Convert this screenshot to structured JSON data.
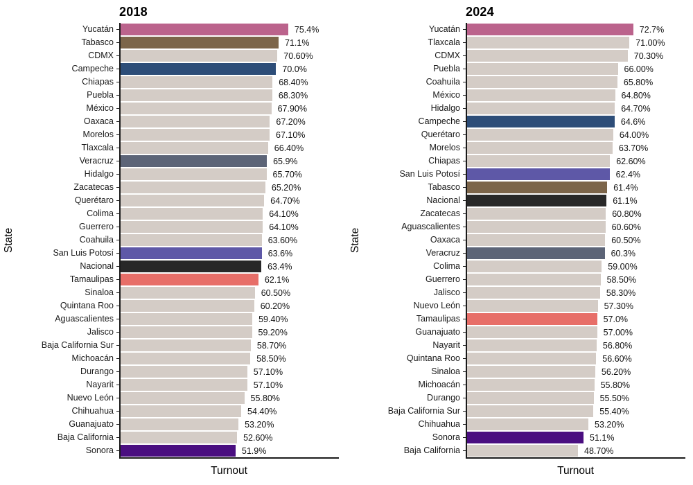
{
  "colors": {
    "bar_default": "#d4ccc6",
    "axis": "#1a1a1a",
    "highlight_pink": "#bb638c",
    "highlight_brown": "#7c654a",
    "highlight_blue": "#2d4d78",
    "highlight_slate": "#5c6477",
    "highlight_purple": "#5e58a7",
    "highlight_black": "#282828",
    "highlight_salmon": "#e76e68",
    "highlight_deep_purple": "#4a0e80"
  },
  "chart_data": [
    {
      "type": "bar",
      "orientation": "horizontal",
      "title": "2018",
      "xlabel": "Turnout",
      "ylabel": "State",
      "xlim": [
        0,
        97.7
      ],
      "grid": false,
      "bars": [
        {
          "name": "Yucatán",
          "value": 75.4,
          "label": "75.4%",
          "color": "#bb638c"
        },
        {
          "name": "Tabasco",
          "value": 71.1,
          "label": "71.1%",
          "color": "#7c654a"
        },
        {
          "name": "CDMX",
          "value": 70.6,
          "label": "70.60%"
        },
        {
          "name": "Campeche",
          "value": 70.0,
          "label": "70.0%",
          "color": "#2d4d78"
        },
        {
          "name": "Chiapas",
          "value": 68.4,
          "label": "68.40%"
        },
        {
          "name": "Puebla",
          "value": 68.3,
          "label": "68.30%"
        },
        {
          "name": "México",
          "value": 67.9,
          "label": "67.90%"
        },
        {
          "name": "Oaxaca",
          "value": 67.2,
          "label": "67.20%"
        },
        {
          "name": "Morelos",
          "value": 67.1,
          "label": "67.10%"
        },
        {
          "name": "Tlaxcala",
          "value": 66.4,
          "label": "66.40%"
        },
        {
          "name": "Veracruz",
          "value": 65.9,
          "label": "65.9%",
          "color": "#5c6477"
        },
        {
          "name": "Hidalgo",
          "value": 65.7,
          "label": "65.70%"
        },
        {
          "name": "Zacatecas",
          "value": 65.2,
          "label": "65.20%"
        },
        {
          "name": "Querétaro",
          "value": 64.7,
          "label": "64.70%"
        },
        {
          "name": "Colima",
          "value": 64.1,
          "label": "64.10%"
        },
        {
          "name": "Guerrero",
          "value": 64.1,
          "label": "64.10%"
        },
        {
          "name": "Coahuila",
          "value": 63.6,
          "label": "63.60%"
        },
        {
          "name": "San Luis Potosí",
          "value": 63.6,
          "label": "63.6%",
          "color": "#5e58a7"
        },
        {
          "name": "Nacional",
          "value": 63.4,
          "label": "63.4%",
          "color": "#282828"
        },
        {
          "name": "Tamaulipas",
          "value": 62.1,
          "label": "62.1%",
          "color": "#e76e68"
        },
        {
          "name": "Sinaloa",
          "value": 60.5,
          "label": "60.50%"
        },
        {
          "name": "Quintana Roo",
          "value": 60.2,
          "label": "60.20%"
        },
        {
          "name": "Aguascalientes",
          "value": 59.4,
          "label": "59.40%"
        },
        {
          "name": "Jalisco",
          "value": 59.2,
          "label": "59.20%"
        },
        {
          "name": "Baja California Sur",
          "value": 58.7,
          "label": "58.70%"
        },
        {
          "name": "Michoacán",
          "value": 58.5,
          "label": "58.50%"
        },
        {
          "name": "Durango",
          "value": 57.1,
          "label": "57.10%"
        },
        {
          "name": "Nayarit",
          "value": 57.1,
          "label": "57.10%"
        },
        {
          "name": "Nuevo León",
          "value": 55.8,
          "label": "55.80%"
        },
        {
          "name": "Chihuahua",
          "value": 54.4,
          "label": "54.40%"
        },
        {
          "name": "Guanajuato",
          "value": 53.2,
          "label": "53.20%"
        },
        {
          "name": "Baja California",
          "value": 52.6,
          "label": "52.60%"
        },
        {
          "name": "Sonora",
          "value": 51.9,
          "label": "51.9%",
          "color": "#4a0e80"
        }
      ]
    },
    {
      "type": "bar",
      "orientation": "horizontal",
      "title": "2024",
      "xlabel": "Turnout",
      "ylabel": "State",
      "xlim": [
        0,
        95.0
      ],
      "grid": false,
      "bars": [
        {
          "name": "Yucatán",
          "value": 72.7,
          "label": "72.7%",
          "color": "#bb638c"
        },
        {
          "name": "Tlaxcala",
          "value": 71.0,
          "label": "71.00%"
        },
        {
          "name": "CDMX",
          "value": 70.3,
          "label": "70.30%"
        },
        {
          "name": "Puebla",
          "value": 66.0,
          "label": "66.00%"
        },
        {
          "name": "Coahuila",
          "value": 65.8,
          "label": "65.80%"
        },
        {
          "name": "México",
          "value": 64.8,
          "label": "64.80%"
        },
        {
          "name": "Hidalgo",
          "value": 64.7,
          "label": "64.70%"
        },
        {
          "name": "Campeche",
          "value": 64.6,
          "label": "64.6%",
          "color": "#2d4d78"
        },
        {
          "name": "Querétaro",
          "value": 64.0,
          "label": "64.00%"
        },
        {
          "name": "Morelos",
          "value": 63.7,
          "label": "63.70%"
        },
        {
          "name": "Chiapas",
          "value": 62.6,
          "label": "62.60%"
        },
        {
          "name": "San Luis Potosí",
          "value": 62.4,
          "label": "62.4%",
          "color": "#5e58a7"
        },
        {
          "name": "Tabasco",
          "value": 61.4,
          "label": "61.4%",
          "color": "#7c654a"
        },
        {
          "name": "Nacional",
          "value": 61.1,
          "label": "61.1%",
          "color": "#282828"
        },
        {
          "name": "Zacatecas",
          "value": 60.8,
          "label": "60.80%"
        },
        {
          "name": "Aguascalientes",
          "value": 60.6,
          "label": "60.60%"
        },
        {
          "name": "Oaxaca",
          "value": 60.5,
          "label": "60.50%"
        },
        {
          "name": "Veracruz",
          "value": 60.3,
          "label": "60.3%",
          "color": "#5c6477"
        },
        {
          "name": "Colima",
          "value": 59.0,
          "label": "59.00%"
        },
        {
          "name": "Guerrero",
          "value": 58.5,
          "label": "58.50%"
        },
        {
          "name": "Jalisco",
          "value": 58.3,
          "label": "58.30%"
        },
        {
          "name": "Nuevo León",
          "value": 57.3,
          "label": "57.30%"
        },
        {
          "name": "Tamaulipas",
          "value": 57.0,
          "label": "57.0%",
          "color": "#e76e68"
        },
        {
          "name": "Guanajuato",
          "value": 57.0,
          "label": "57.00%"
        },
        {
          "name": "Nayarit",
          "value": 56.8,
          "label": "56.80%"
        },
        {
          "name": "Quintana Roo",
          "value": 56.6,
          "label": "56.60%"
        },
        {
          "name": "Sinaloa",
          "value": 56.2,
          "label": "56.20%"
        },
        {
          "name": "Michoacán",
          "value": 55.8,
          "label": "55.80%"
        },
        {
          "name": "Durango",
          "value": 55.5,
          "label": "55.50%"
        },
        {
          "name": "Baja California Sur",
          "value": 55.4,
          "label": "55.40%"
        },
        {
          "name": "Chihuahua",
          "value": 53.2,
          "label": "53.20%"
        },
        {
          "name": "Sonora",
          "value": 51.1,
          "label": "51.1%",
          "color": "#4a0e80"
        },
        {
          "name": "Baja California",
          "value": 48.7,
          "label": "48.70%"
        }
      ]
    }
  ]
}
